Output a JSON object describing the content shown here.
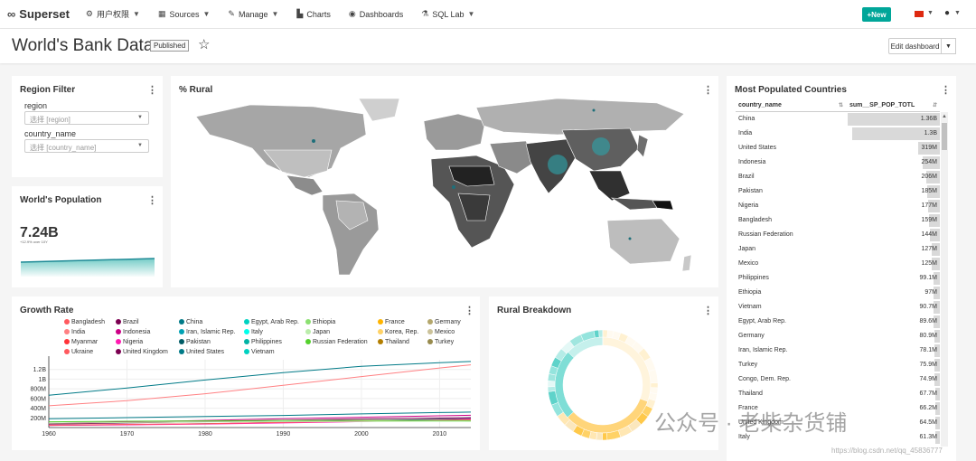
{
  "navbar": {
    "brand": "Superset",
    "items": [
      {
        "icon": "wrench-icon",
        "label": "用户权限"
      },
      {
        "icon": "table-icon",
        "label": "Sources"
      },
      {
        "icon": "wrench-icon",
        "label": "Manage"
      },
      {
        "icon": "bar-chart-icon",
        "label": "Charts"
      },
      {
        "icon": "dashboard-icon",
        "label": "Dashboards"
      },
      {
        "icon": "flask-icon",
        "label": "SQL Lab"
      }
    ],
    "new_label": "New"
  },
  "header": {
    "title": "World's Bank Data",
    "badge": "Published",
    "edit_label": "Edit dashboard"
  },
  "region_filter": {
    "title": "Region Filter",
    "fields": [
      {
        "label": "region",
        "placeholder": "选择 [region]"
      },
      {
        "label": "country_name",
        "placeholder": "选择 [country_name]"
      }
    ]
  },
  "world_population": {
    "title": "World's Population",
    "value": "7.24B",
    "subtitle": "+12.9% over 10Y"
  },
  "rural_map": {
    "title": "% Rural"
  },
  "growth_rate": {
    "title": "Growth Rate",
    "legend": [
      {
        "name": "Bangladesh",
        "color": "#ff5a5f"
      },
      {
        "name": "Brazil",
        "color": "#7b0051"
      },
      {
        "name": "China",
        "color": "#007a87"
      },
      {
        "name": "Egypt, Arab Rep.",
        "color": "#00d1c1"
      },
      {
        "name": "Ethiopia",
        "color": "#8ce071"
      },
      {
        "name": "France",
        "color": "#ffb400"
      },
      {
        "name": "Germany",
        "color": "#b4a76c"
      },
      {
        "name": "India",
        "color": "#ff8083"
      },
      {
        "name": "Indonesia",
        "color": "#cc0086"
      },
      {
        "name": "Iran, Islamic Rep.",
        "color": "#00a1b3"
      },
      {
        "name": "Italy",
        "color": "#00ffeb"
      },
      {
        "name": "Japan",
        "color": "#bbedab"
      },
      {
        "name": "Korea, Rep.",
        "color": "#ffd266"
      },
      {
        "name": "Mexico",
        "color": "#cbc29a"
      },
      {
        "name": "Myanmar",
        "color": "#ff3339"
      },
      {
        "name": "Nigeria",
        "color": "#ff1ab1"
      },
      {
        "name": "Pakistan",
        "color": "#005c66"
      },
      {
        "name": "Philippines",
        "color": "#00b3a5"
      },
      {
        "name": "Russian Federation",
        "color": "#55d12e"
      },
      {
        "name": "Thailand",
        "color": "#b37e00"
      },
      {
        "name": "Turkey",
        "color": "#988b4e"
      },
      {
        "name": "Ukraine",
        "color": "#ff5a5f"
      },
      {
        "name": "United Kingdom",
        "color": "#7b0051"
      },
      {
        "name": "United States",
        "color": "#007a87"
      },
      {
        "name": "Vietnam",
        "color": "#00d1c1"
      }
    ]
  },
  "chart_data": {
    "type": "line",
    "x": [
      1960,
      1970,
      1980,
      1990,
      2000,
      2010,
      2014
    ],
    "ylim": [
      0,
      1400000000
    ],
    "y_ticks": [
      200000000,
      400000000,
      600000000,
      800000000,
      1000000000,
      1200000000
    ],
    "y_tick_labels": [
      "200M",
      "400M",
      "600M",
      "800M",
      "1B",
      "1.2B"
    ],
    "x_tick_labels": [
      "1960",
      "1970",
      "1980",
      "1990",
      "2000",
      "2010"
    ],
    "series": [
      {
        "name": "China",
        "color": "#007a87",
        "values": [
          667000000,
          818000000,
          981000000,
          1135000000,
          1263000000,
          1338000000,
          1364000000
        ]
      },
      {
        "name": "India",
        "color": "#ff8083",
        "values": [
          450000000,
          555000000,
          699000000,
          871000000,
          1053000000,
          1231000000,
          1295000000
        ]
      },
      {
        "name": "United States",
        "color": "#007a87",
        "values": [
          181000000,
          205000000,
          227000000,
          250000000,
          282000000,
          309000000,
          319000000
        ]
      },
      {
        "name": "Indonesia",
        "color": "#cc0086",
        "values": [
          88000000,
          115000000,
          148000000,
          181000000,
          212000000,
          242000000,
          254000000
        ]
      },
      {
        "name": "Brazil",
        "color": "#7b0051",
        "values": [
          72000000,
          96000000,
          121000000,
          150000000,
          175000000,
          196000000,
          206000000
        ]
      },
      {
        "name": "Pakistan",
        "color": "#005c66",
        "values": [
          45000000,
          59000000,
          78000000,
          107000000,
          138000000,
          170000000,
          185000000
        ]
      },
      {
        "name": "Nigeria",
        "color": "#ff1ab1",
        "values": [
          45000000,
          56000000,
          73000000,
          95000000,
          123000000,
          159000000,
          177000000
        ]
      },
      {
        "name": "Bangladesh",
        "color": "#ff5a5f",
        "values": [
          48000000,
          65000000,
          80000000,
          106000000,
          132000000,
          151000000,
          159000000
        ]
      },
      {
        "name": "Russian Federation",
        "color": "#55d12e",
        "values": [
          120000000,
          130000000,
          139000000,
          148000000,
          147000000,
          143000000,
          144000000
        ]
      },
      {
        "name": "Japan",
        "color": "#bbedab",
        "values": [
          92000000,
          104000000,
          117000000,
          124000000,
          127000000,
          128000000,
          127000000
        ]
      }
    ]
  },
  "rural_breakdown": {
    "title": "Rural Breakdown"
  },
  "populated": {
    "title": "Most Populated Countries",
    "columns": [
      "country_name",
      "sum__SP_POP_TOTL"
    ],
    "rows": [
      {
        "name": "China",
        "value": "1.36B",
        "num": 1364
      },
      {
        "name": "India",
        "value": "1.3B",
        "num": 1295
      },
      {
        "name": "United States",
        "value": "319M",
        "num": 319
      },
      {
        "name": "Indonesia",
        "value": "254M",
        "num": 254
      },
      {
        "name": "Brazil",
        "value": "206M",
        "num": 206
      },
      {
        "name": "Pakistan",
        "value": "185M",
        "num": 185
      },
      {
        "name": "Nigeria",
        "value": "177M",
        "num": 177
      },
      {
        "name": "Bangladesh",
        "value": "159M",
        "num": 159
      },
      {
        "name": "Russian Federation",
        "value": "144M",
        "num": 144
      },
      {
        "name": "Japan",
        "value": "127M",
        "num": 127
      },
      {
        "name": "Mexico",
        "value": "125M",
        "num": 125
      },
      {
        "name": "Philippines",
        "value": "99.1M",
        "num": 99.1
      },
      {
        "name": "Ethiopia",
        "value": "97M",
        "num": 97
      },
      {
        "name": "Vietnam",
        "value": "90.7M",
        "num": 90.7
      },
      {
        "name": "Egypt, Arab Rep.",
        "value": "89.6M",
        "num": 89.6
      },
      {
        "name": "Germany",
        "value": "80.9M",
        "num": 80.9
      },
      {
        "name": "Iran, Islamic Rep.",
        "value": "78.1M",
        "num": 78.1
      },
      {
        "name": "Turkey",
        "value": "75.9M",
        "num": 75.9
      },
      {
        "name": "Congo, Dem. Rep.",
        "value": "74.9M",
        "num": 74.9
      },
      {
        "name": "Thailand",
        "value": "67.7M",
        "num": 67.7
      },
      {
        "name": "France",
        "value": "66.2M",
        "num": 66.2
      },
      {
        "name": "United Kingdom",
        "value": "64.5M",
        "num": 64.5
      },
      {
        "name": "Italy",
        "value": "61.3M",
        "num": 61.3
      }
    ]
  },
  "watermark": {
    "text": "公众号 · 老柴杂货铺",
    "url": "https://blog.csdn.net/qq_45836777"
  }
}
